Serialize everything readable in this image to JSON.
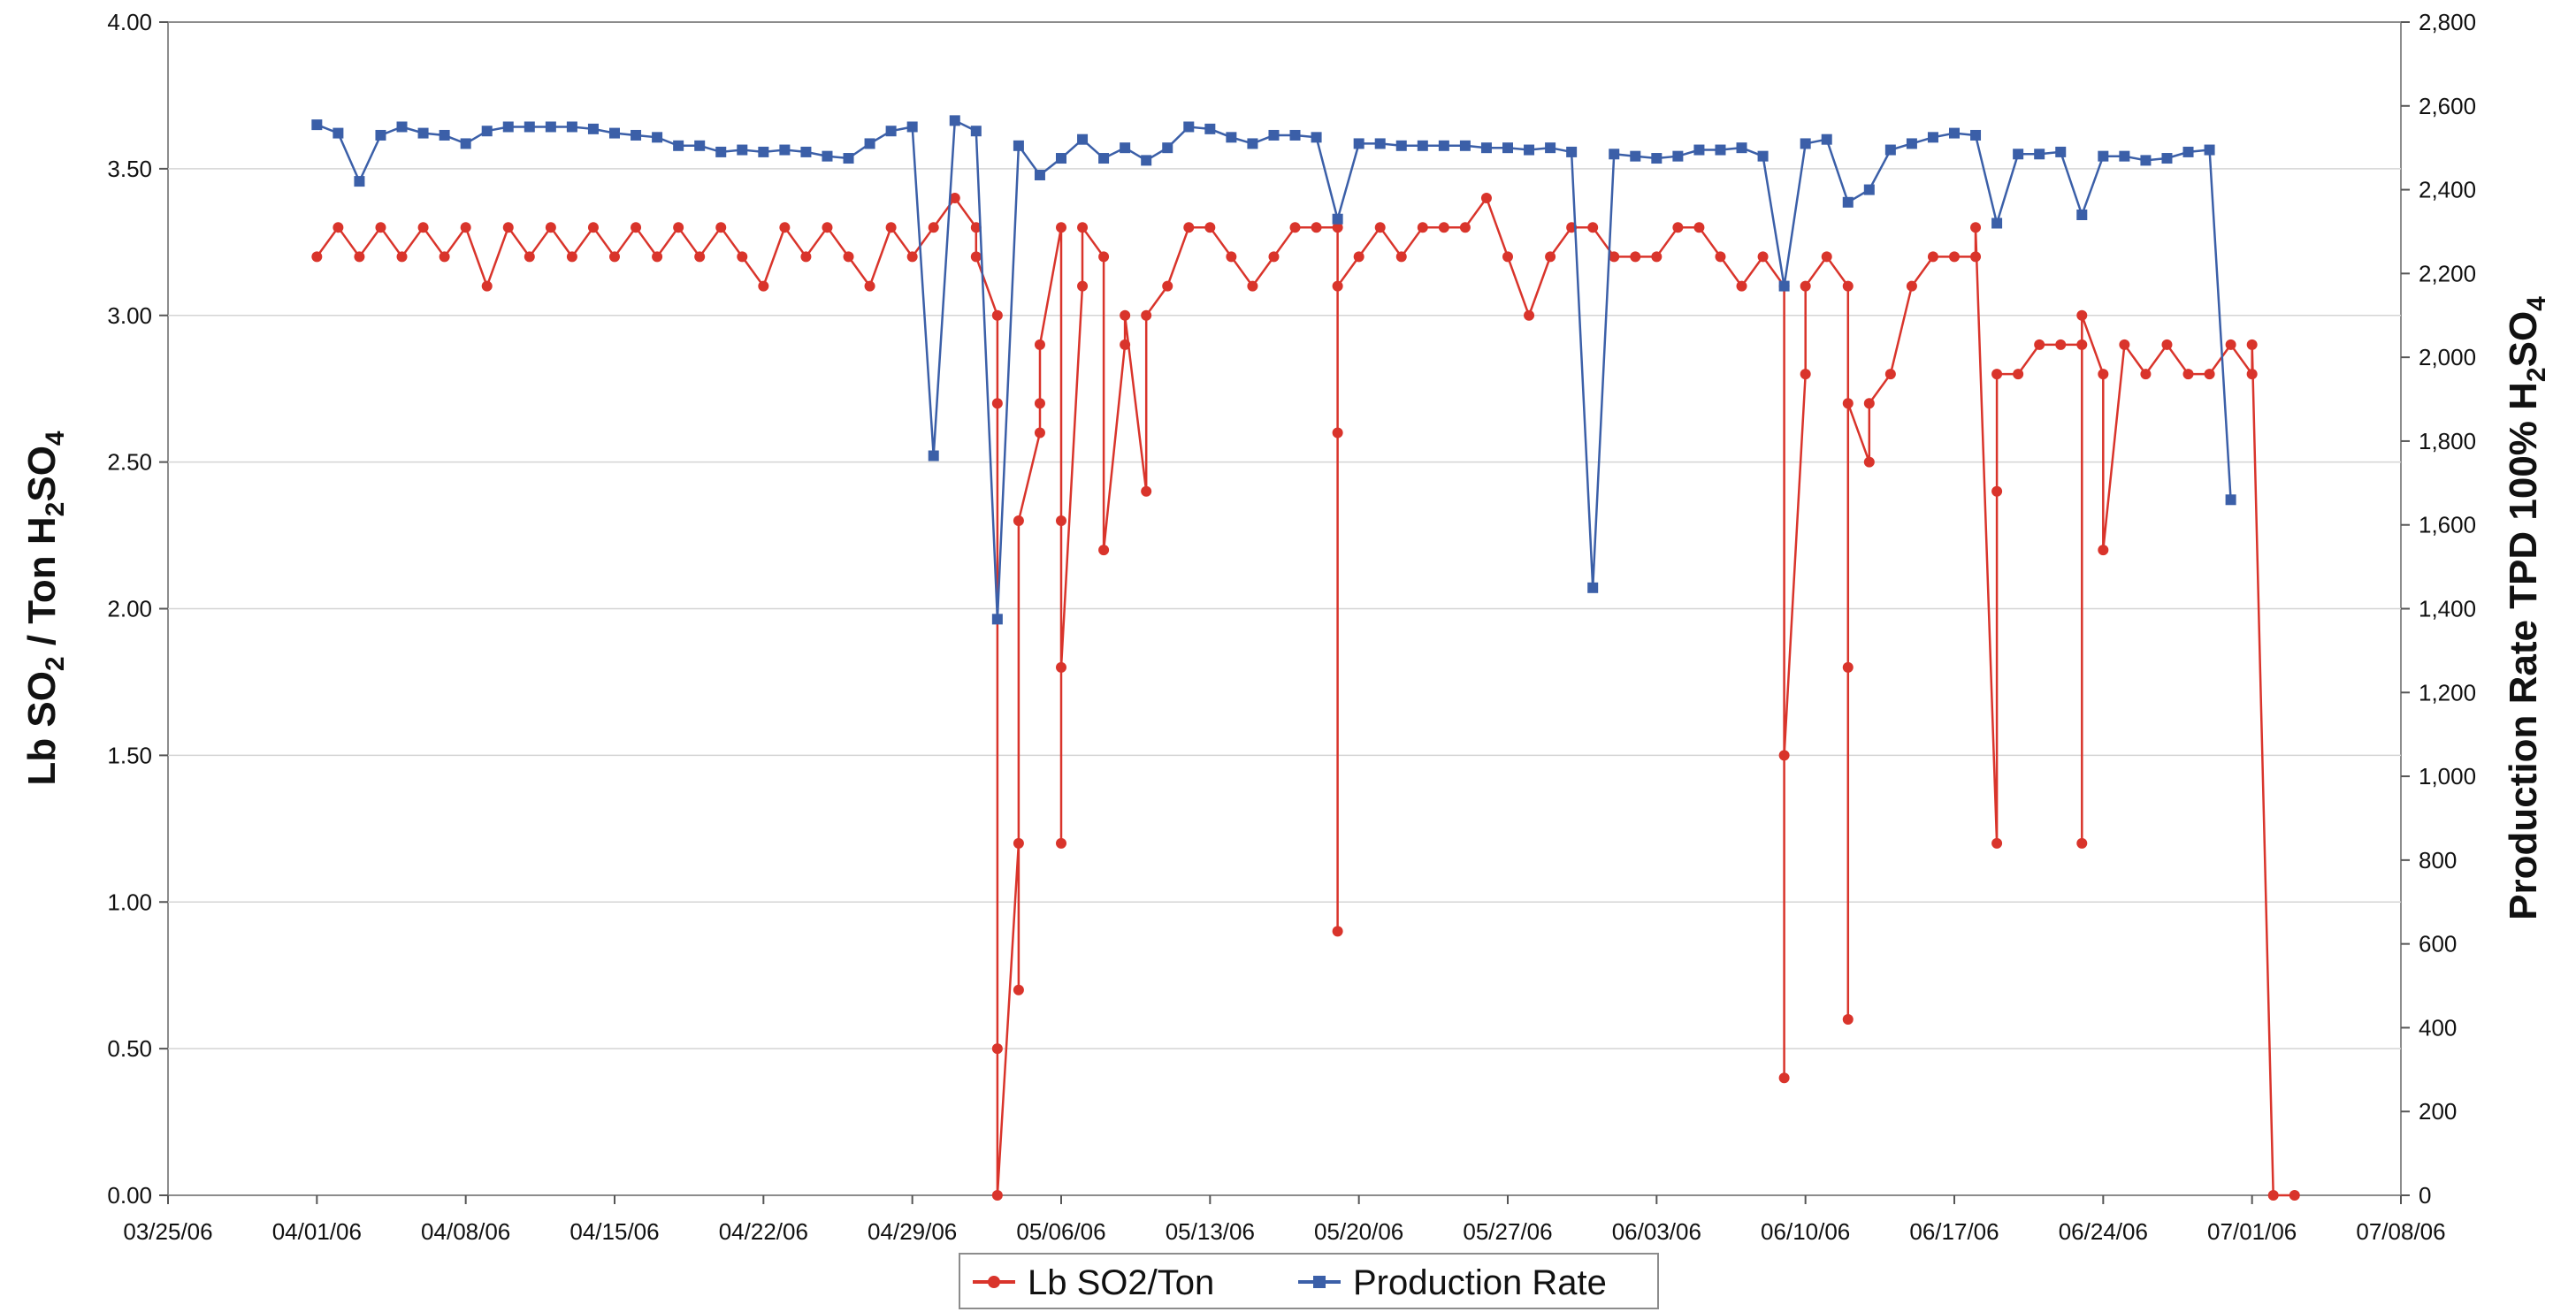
{
  "chart_data": {
    "type": "line",
    "title": "",
    "y_left_label": [
      "Lb SO",
      "2",
      " / Ton H",
      "2",
      "SO",
      "4"
    ],
    "y_right_label": [
      "Production Rate TPD 100% H",
      "2",
      "SO",
      "4"
    ],
    "x_range": [
      "2006-03-25",
      "2006-07-08"
    ],
    "x_tick_labels": [
      "03/25/06",
      "04/01/06",
      "04/08/06",
      "04/15/06",
      "04/22/06",
      "04/29/06",
      "05/06/06",
      "05/13/06",
      "05/20/06",
      "05/27/06",
      "06/03/06",
      "06/10/06",
      "06/17/06",
      "06/24/06",
      "07/01/06",
      "07/08/06"
    ],
    "y_left_range": [
      0,
      4
    ],
    "y_left_tick_labels": [
      "0.00",
      "0.50",
      "1.00",
      "1.50",
      "2.00",
      "2.50",
      "3.00",
      "3.50",
      "4.00"
    ],
    "y_right_range": [
      0,
      2800
    ],
    "y_right_tick_labels": [
      "0",
      "200",
      "400",
      "600",
      "800",
      "1,000",
      "1,200",
      "1,400",
      "1,600",
      "1,800",
      "2,000",
      "2,200",
      "2,400",
      "2,600",
      "2,800"
    ],
    "grid": "horizontal",
    "legend": "bottom",
    "series": [
      {
        "name": "Lb SO2/Ton",
        "axis": "left",
        "color": "#d9342b",
        "marker": "circle",
        "x": [
          "2006-04-01",
          "2006-04-02",
          "2006-04-03",
          "2006-04-04",
          "2006-04-05",
          "2006-04-06",
          "2006-04-07",
          "2006-04-08",
          "2006-04-09",
          "2006-04-10",
          "2006-04-11",
          "2006-04-12",
          "2006-04-13",
          "2006-04-14",
          "2006-04-15",
          "2006-04-16",
          "2006-04-17",
          "2006-04-18",
          "2006-04-19",
          "2006-04-20",
          "2006-04-21",
          "2006-04-22",
          "2006-04-23",
          "2006-04-24",
          "2006-04-25",
          "2006-04-26",
          "2006-04-27",
          "2006-04-28",
          "2006-04-29",
          "2006-04-30",
          "2006-05-01",
          "2006-05-02",
          "2006-05-02",
          "2006-05-03",
          "2006-05-03",
          "2006-05-03",
          "2006-05-03",
          "2006-05-04",
          "2006-05-04",
          "2006-05-04",
          "2006-05-05",
          "2006-05-05",
          "2006-05-05",
          "2006-05-06",
          "2006-05-06",
          "2006-05-06",
          "2006-05-06",
          "2006-05-07",
          "2006-05-07",
          "2006-05-08",
          "2006-05-08",
          "2006-05-09",
          "2006-05-09",
          "2006-05-10",
          "2006-05-10",
          "2006-05-11",
          "2006-05-12",
          "2006-05-13",
          "2006-05-14",
          "2006-05-15",
          "2006-05-16",
          "2006-05-17",
          "2006-05-18",
          "2006-05-19",
          "2006-05-19",
          "2006-05-19",
          "2006-05-19",
          "2006-05-20",
          "2006-05-21",
          "2006-05-22",
          "2006-05-23",
          "2006-05-24",
          "2006-05-25",
          "2006-05-26",
          "2006-05-27",
          "2006-05-28",
          "2006-05-29",
          "2006-05-30",
          "2006-05-31",
          "2006-06-01",
          "2006-06-02",
          "2006-06-03",
          "2006-06-04",
          "2006-06-05",
          "2006-06-06",
          "2006-06-07",
          "2006-06-08",
          "2006-06-09",
          "2006-06-09",
          "2006-06-09",
          "2006-06-10",
          "2006-06-10",
          "2006-06-11",
          "2006-06-12",
          "2006-06-12",
          "2006-06-12",
          "2006-06-12",
          "2006-06-13",
          "2006-06-13",
          "2006-06-14",
          "2006-06-15",
          "2006-06-16",
          "2006-06-17",
          "2006-06-18",
          "2006-06-18",
          "2006-06-19",
          "2006-06-19",
          "2006-06-19",
          "2006-06-20",
          "2006-06-21",
          "2006-06-22",
          "2006-06-23",
          "2006-06-23",
          "2006-06-23",
          "2006-06-24",
          "2006-06-24",
          "2006-06-25",
          "2006-06-26",
          "2006-06-27",
          "2006-06-28",
          "2006-06-29",
          "2006-06-30",
          "2006-07-01",
          "2006-07-01",
          "2006-07-02",
          "2006-07-03"
        ],
        "values": [
          3.2,
          3.3,
          3.2,
          3.3,
          3.2,
          3.3,
          3.2,
          3.3,
          3.1,
          3.3,
          3.2,
          3.3,
          3.2,
          3.3,
          3.2,
          3.3,
          3.2,
          3.3,
          3.2,
          3.3,
          3.2,
          3.1,
          3.3,
          3.2,
          3.3,
          3.2,
          3.1,
          3.3,
          3.2,
          3.3,
          3.4,
          3.3,
          3.2,
          3.0,
          2.7,
          0.5,
          0.0,
          1.2,
          0.7,
          2.3,
          2.6,
          2.7,
          2.9,
          3.3,
          1.2,
          2.3,
          1.8,
          3.1,
          3.3,
          3.2,
          2.2,
          2.9,
          3.0,
          2.4,
          3.0,
          3.1,
          3.3,
          3.3,
          3.2,
          3.1,
          3.2,
          3.3,
          3.3,
          3.3,
          0.9,
          2.6,
          3.1,
          3.2,
          3.3,
          3.2,
          3.3,
          3.3,
          3.3,
          3.4,
          3.2,
          3.0,
          3.2,
          3.3,
          3.3,
          3.2,
          3.2,
          3.2,
          3.3,
          3.3,
          3.2,
          3.1,
          3.2,
          3.1,
          0.4,
          1.5,
          2.8,
          3.1,
          3.2,
          3.1,
          0.6,
          1.8,
          2.7,
          2.5,
          2.7,
          2.8,
          3.1,
          3.2,
          3.2,
          3.2,
          3.3,
          1.2,
          2.4,
          2.8,
          2.8,
          2.9,
          2.9,
          2.9,
          1.2,
          3.0,
          2.8,
          2.2,
          2.9,
          2.8,
          2.9,
          2.8,
          2.8,
          2.9,
          2.8,
          2.9,
          0.0,
          0.0
        ]
      },
      {
        "name": "Production Rate",
        "axis": "right",
        "color": "#3b5fa8",
        "marker": "square",
        "x": [
          "2006-04-01",
          "2006-04-02",
          "2006-04-03",
          "2006-04-04",
          "2006-04-05",
          "2006-04-06",
          "2006-04-07",
          "2006-04-08",
          "2006-04-09",
          "2006-04-10",
          "2006-04-11",
          "2006-04-12",
          "2006-04-13",
          "2006-04-14",
          "2006-04-15",
          "2006-04-16",
          "2006-04-17",
          "2006-04-18",
          "2006-04-19",
          "2006-04-20",
          "2006-04-21",
          "2006-04-22",
          "2006-04-23",
          "2006-04-24",
          "2006-04-25",
          "2006-04-26",
          "2006-04-27",
          "2006-04-28",
          "2006-04-29",
          "2006-04-30",
          "2006-05-01",
          "2006-05-02",
          "2006-05-03",
          "2006-05-04",
          "2006-05-05",
          "2006-05-06",
          "2006-05-07",
          "2006-05-08",
          "2006-05-09",
          "2006-05-10",
          "2006-05-11",
          "2006-05-12",
          "2006-05-13",
          "2006-05-14",
          "2006-05-15",
          "2006-05-16",
          "2006-05-17",
          "2006-05-18",
          "2006-05-19",
          "2006-05-20",
          "2006-05-21",
          "2006-05-22",
          "2006-05-23",
          "2006-05-24",
          "2006-05-25",
          "2006-05-26",
          "2006-05-27",
          "2006-05-28",
          "2006-05-29",
          "2006-05-30",
          "2006-05-31",
          "2006-06-01",
          "2006-06-02",
          "2006-06-03",
          "2006-06-04",
          "2006-06-05",
          "2006-06-06",
          "2006-06-07",
          "2006-06-08",
          "2006-06-09",
          "2006-06-10",
          "2006-06-11",
          "2006-06-12",
          "2006-06-13",
          "2006-06-14",
          "2006-06-15",
          "2006-06-16",
          "2006-06-17",
          "2006-06-18",
          "2006-06-19",
          "2006-06-20",
          "2006-06-21",
          "2006-06-22",
          "2006-06-23",
          "2006-06-24",
          "2006-06-25",
          "2006-06-26",
          "2006-06-27",
          "2006-06-28",
          "2006-06-29",
          "2006-06-30"
        ],
        "values": [
          2555,
          2535,
          2420,
          2530,
          2550,
          2535,
          2530,
          2510,
          2540,
          2550,
          2550,
          2550,
          2550,
          2545,
          2535,
          2530,
          2525,
          2505,
          2505,
          2490,
          2495,
          2490,
          2495,
          2490,
          2480,
          2475,
          2510,
          2540,
          2550,
          1765,
          2565,
          2540,
          1375,
          2505,
          2435,
          2475,
          2520,
          2475,
          2500,
          2470,
          2500,
          2550,
          2545,
          2525,
          2510,
          2530,
          2530,
          2525,
          2330,
          2510,
          2510,
          2505,
          2505,
          2505,
          2505,
          2500,
          2500,
          2495,
          2500,
          2490,
          1450,
          2485,
          2480,
          2475,
          2480,
          2495,
          2495,
          2500,
          2480,
          2170,
          2510,
          2520,
          2370,
          2400,
          2495,
          2510,
          2525,
          2535,
          2530,
          2320,
          2485,
          2485,
          2490,
          2340,
          2480,
          2480,
          2470,
          2475,
          2490,
          2495,
          1660
        ]
      }
    ]
  }
}
